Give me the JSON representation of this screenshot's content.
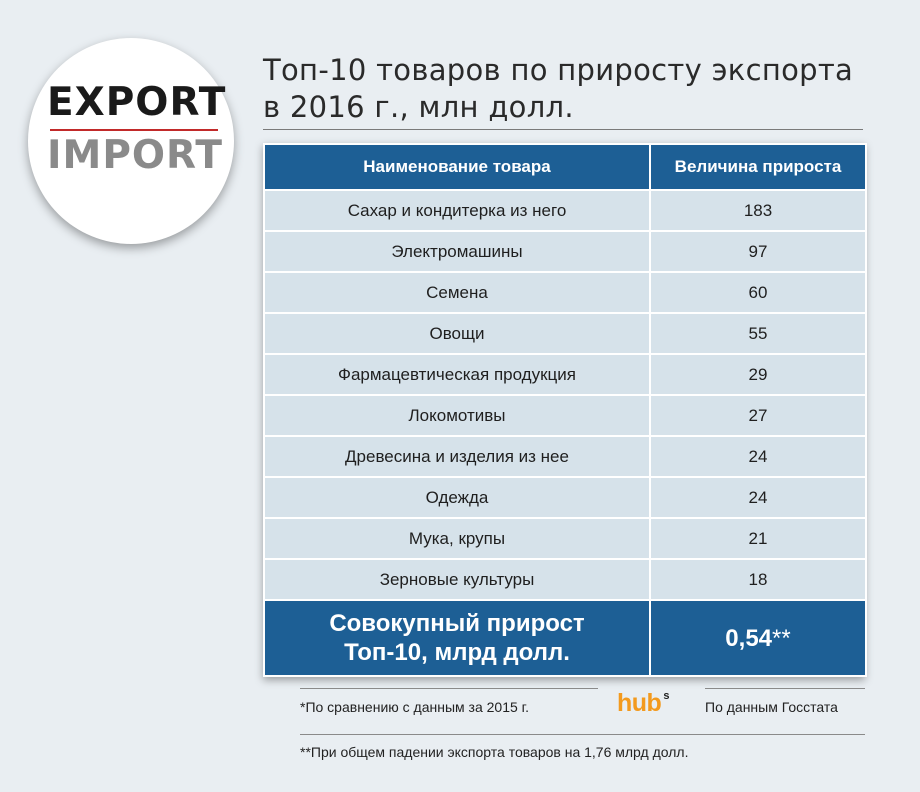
{
  "logo": {
    "line1": "EXPORT",
    "line2": "IMPORT"
  },
  "title": {
    "line1": "Топ-10 товаров по приросту экспорта",
    "line2": "в 2016 г., млн долл."
  },
  "chart_data": {
    "type": "table",
    "title": "Топ-10 товаров по приросту экспорта в 2016 г., млн долл.",
    "columns": [
      "Наименование товара",
      "Величина прироста"
    ],
    "rows": [
      [
        "Сахар и кондитерка из него",
        "183"
      ],
      [
        "Электромашины",
        "97"
      ],
      [
        "Семена",
        "60"
      ],
      [
        "Овощи",
        "55"
      ],
      [
        "Фармацевтическая продукция",
        "29"
      ],
      [
        "Локомотивы",
        "27"
      ],
      [
        "Древесина и изделия из нее",
        "24"
      ],
      [
        "Одежда",
        "24"
      ],
      [
        "Мука, крупы",
        "21"
      ],
      [
        "Зерновые культуры",
        "18"
      ]
    ],
    "total": {
      "label_line1": "Совокупный прирост",
      "label_line2": "Топ-10, млрд долл.",
      "value": "0,54",
      "value_note": "**"
    },
    "colors": {
      "header": "#1d5f95",
      "row": "#d6e2ea",
      "text_on_header": "#ffffff"
    }
  },
  "footer": {
    "note1": "*По сравнению с данным за 2015 г.",
    "hub_logo": "hub",
    "hub_sup": "s",
    "source": "По данным Госстата",
    "note2": "**При общем падении экспорта товаров на 1,76 млрд долл."
  }
}
